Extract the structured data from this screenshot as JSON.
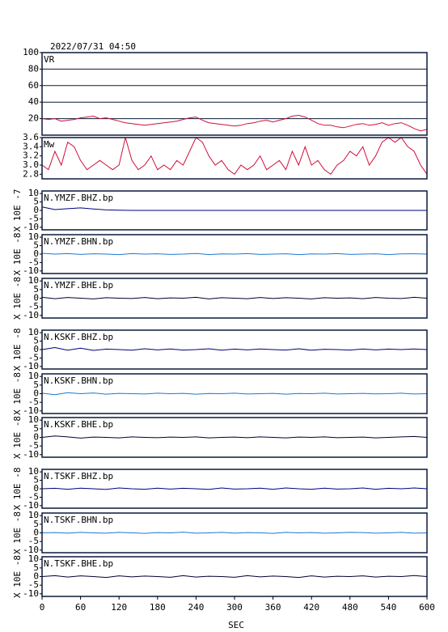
{
  "chart_data": [
    {
      "type": "line",
      "title": "2022/07/31 04:50",
      "label": "VR",
      "color": "#d0103a",
      "grid": true,
      "xlim": [
        0,
        600
      ],
      "ylim": [
        0,
        100
      ],
      "yticks": [
        20,
        40,
        60,
        80,
        100
      ],
      "x": [
        0,
        10,
        20,
        30,
        40,
        50,
        60,
        70,
        80,
        90,
        100,
        110,
        120,
        130,
        140,
        150,
        160,
        170,
        180,
        190,
        200,
        210,
        220,
        230,
        240,
        250,
        260,
        270,
        280,
        290,
        300,
        310,
        320,
        330,
        340,
        350,
        360,
        370,
        380,
        390,
        400,
        410,
        420,
        430,
        440,
        450,
        460,
        470,
        480,
        490,
        500,
        510,
        520,
        530,
        540,
        550,
        560,
        570,
        580,
        590,
        600
      ],
      "values": [
        20,
        19,
        20,
        17,
        18,
        19,
        21,
        22,
        23,
        20,
        21,
        19,
        17,
        15,
        14,
        13,
        12,
        13,
        14,
        15,
        16,
        17,
        19,
        21,
        22,
        18,
        15,
        14,
        13,
        12,
        11,
        12,
        14,
        15,
        17,
        18,
        16,
        18,
        20,
        23,
        24,
        22,
        18,
        14,
        12,
        12,
        10,
        9,
        11,
        13,
        14,
        12,
        13,
        15,
        12,
        14,
        15,
        12,
        8,
        5,
        7
      ]
    },
    {
      "type": "line",
      "label": "Mw",
      "color": "#d0103a",
      "grid": false,
      "xlim": [
        0,
        600
      ],
      "ylim": [
        2.7,
        3.6
      ],
      "yticks": [
        2.8,
        {
          "value": 3,
          "label": "3.0"
        },
        3.2,
        3.4,
        3.6
      ],
      "x": [
        0,
        10,
        20,
        30,
        40,
        50,
        60,
        70,
        80,
        90,
        100,
        110,
        120,
        130,
        140,
        150,
        160,
        170,
        180,
        190,
        200,
        210,
        220,
        230,
        240,
        250,
        260,
        270,
        280,
        290,
        300,
        310,
        320,
        330,
        340,
        350,
        360,
        370,
        380,
        390,
        400,
        410,
        420,
        430,
        440,
        450,
        460,
        470,
        480,
        490,
        500,
        510,
        520,
        530,
        540,
        550,
        560,
        570,
        580,
        590,
        600
      ],
      "values": [
        3.0,
        2.9,
        3.3,
        3.0,
        3.5,
        3.4,
        3.1,
        2.9,
        3.0,
        3.1,
        3.0,
        2.9,
        3.0,
        3.6,
        3.1,
        2.9,
        3.0,
        3.2,
        2.9,
        3.0,
        2.9,
        3.1,
        3.0,
        3.3,
        3.6,
        3.5,
        3.2,
        3.0,
        3.1,
        2.9,
        2.8,
        3.0,
        2.9,
        3.0,
        3.2,
        2.9,
        3.0,
        3.1,
        2.9,
        3.3,
        3.0,
        3.4,
        3.0,
        3.1,
        2.9,
        2.8,
        3.0,
        3.1,
        3.3,
        3.2,
        3.4,
        3.0,
        3.2,
        3.5,
        3.6,
        3.5,
        3.6,
        3.4,
        3.3,
        3.0,
        2.8
      ]
    },
    {
      "type": "line",
      "label": "N.YMZF.BHZ.bp",
      "ylabel": "X 10E -7",
      "color": "#000080",
      "xlim": [
        0,
        600
      ],
      "ylim": [
        -11.5,
        11.5
      ],
      "yticks": [
        -10,
        -5,
        0,
        5,
        10
      ],
      "x": [
        0,
        20,
        40,
        60,
        80,
        100,
        120,
        140,
        160,
        180,
        200,
        220,
        240,
        260,
        280,
        300,
        320,
        340,
        360,
        380,
        400,
        420,
        440,
        460,
        480,
        500,
        520,
        540,
        560,
        580,
        600
      ],
      "values": [
        2,
        0.5,
        1,
        1.5,
        0.8,
        0.3,
        0.1,
        0,
        0,
        0,
        0,
        0,
        0,
        0,
        0,
        0,
        0,
        0,
        0,
        0,
        0,
        0,
        0,
        0,
        0,
        0,
        0,
        0,
        0,
        0,
        0
      ]
    },
    {
      "type": "line",
      "label": "N.YMZF.BHN.bp",
      "ylabel": "X 10E -8",
      "color": "#1e78d0",
      "xlim": [
        0,
        600
      ],
      "ylim": [
        -11.5,
        11.5
      ],
      "yticks": [
        -10,
        -5,
        0,
        5,
        10
      ],
      "x": [
        0,
        20,
        40,
        60,
        80,
        100,
        120,
        140,
        160,
        180,
        200,
        220,
        240,
        260,
        280,
        300,
        320,
        340,
        360,
        380,
        400,
        420,
        440,
        460,
        480,
        500,
        520,
        540,
        560,
        580,
        600
      ],
      "values": [
        0.5,
        0,
        0.3,
        -0.2,
        0.2,
        0,
        -0.3,
        0.3,
        0,
        0.2,
        -0.2,
        0,
        0.4,
        -0.3,
        0.1,
        0,
        0.3,
        -0.2,
        0,
        0.2,
        -0.3,
        0.1,
        0,
        0.3,
        -0.2,
        0,
        0.2,
        -0.3,
        0.1,
        0.2,
        0
      ]
    },
    {
      "type": "line",
      "label": "N.YMZF.BHE.bp",
      "ylabel": "X 10E -8",
      "color": "#000030",
      "xlim": [
        0,
        600
      ],
      "ylim": [
        -11.5,
        11.5
      ],
      "yticks": [
        -10,
        -5,
        0,
        5,
        10
      ],
      "x": [
        0,
        20,
        40,
        60,
        80,
        100,
        120,
        140,
        160,
        180,
        200,
        220,
        240,
        260,
        280,
        300,
        320,
        340,
        360,
        380,
        400,
        420,
        440,
        460,
        480,
        500,
        520,
        540,
        560,
        580,
        600
      ],
      "values": [
        0.5,
        -0.3,
        0.4,
        0,
        -0.4,
        0.3,
        0,
        -0.2,
        0.4,
        -0.3,
        0.2,
        0,
        0.5,
        -0.4,
        0.3,
        0,
        -0.3,
        0.4,
        -0.2,
        0.3,
        0,
        -0.4,
        0.3,
        0,
        0.2,
        -0.3,
        0.4,
        0,
        -0.2,
        0.5,
        0
      ]
    },
    {
      "type": "line",
      "label": "N.KSKF.BHZ.bp",
      "ylabel": "X 10E -8",
      "color": "#000080",
      "xlim": [
        0,
        600
      ],
      "ylim": [
        -11.5,
        11.5
      ],
      "yticks": [
        -10,
        -5,
        0,
        5,
        10
      ],
      "x": [
        0,
        20,
        40,
        60,
        80,
        100,
        120,
        140,
        160,
        180,
        200,
        220,
        240,
        260,
        280,
        300,
        320,
        340,
        360,
        380,
        400,
        420,
        440,
        460,
        480,
        500,
        520,
        540,
        560,
        580,
        600
      ],
      "values": [
        0,
        1.2,
        -0.4,
        0.8,
        -0.5,
        0.3,
        0,
        -0.4,
        0.5,
        -0.2,
        0.4,
        -0.3,
        0,
        0.5,
        -0.4,
        0.3,
        -0.2,
        0.4,
        0,
        -0.3,
        0.5,
        -0.4,
        0.2,
        0,
        -0.3,
        0.4,
        -0.2,
        0.3,
        0,
        0.4,
        0
      ]
    },
    {
      "type": "line",
      "label": "N.KSKF.BHN.bp",
      "ylabel": "X 10E -8",
      "color": "#1e78d0",
      "xlim": [
        0,
        600
      ],
      "ylim": [
        -11.5,
        11.5
      ],
      "yticks": [
        -10,
        -5,
        0,
        5,
        10
      ],
      "x": [
        0,
        20,
        40,
        60,
        80,
        100,
        120,
        140,
        160,
        180,
        200,
        220,
        240,
        260,
        280,
        300,
        320,
        340,
        360,
        380,
        400,
        420,
        440,
        460,
        480,
        500,
        520,
        540,
        560,
        580,
        600
      ],
      "values": [
        0.3,
        -0.6,
        0.6,
        0,
        0.4,
        -0.3,
        0.2,
        0,
        -0.2,
        0.3,
        0,
        0.2,
        -0.3,
        0.1,
        0,
        0.3,
        -0.2,
        0,
        0.2,
        -0.3,
        0.1,
        0,
        0.3,
        -0.2,
        0,
        0.2,
        -0.1,
        0,
        0.3,
        -0.2,
        0
      ]
    },
    {
      "type": "line",
      "label": "N.KSKF.BHE.bp",
      "ylabel": "X 10E -8",
      "color": "#000030",
      "xlim": [
        0,
        600
      ],
      "ylim": [
        -11.5,
        11.5
      ],
      "yticks": [
        -10,
        -5,
        0,
        5,
        10
      ],
      "x": [
        0,
        20,
        40,
        60,
        80,
        100,
        120,
        140,
        160,
        180,
        200,
        220,
        240,
        260,
        280,
        300,
        320,
        340,
        360,
        380,
        400,
        420,
        440,
        460,
        480,
        500,
        520,
        540,
        560,
        580,
        600
      ],
      "values": [
        0,
        0.8,
        0.3,
        -0.4,
        0.2,
        0,
        -0.3,
        0.3,
        0,
        -0.2,
        0.2,
        0,
        0.3,
        -0.3,
        0,
        0.2,
        -0.2,
        0.3,
        0,
        -0.3,
        0.2,
        0,
        0.3,
        -0.2,
        0,
        0.2,
        -0.3,
        0,
        0.3,
        0.5,
        0
      ]
    },
    {
      "type": "line",
      "label": "N.TSKF.BHZ.bp",
      "ylabel": "X 10E -8",
      "color": "#000080",
      "xlim": [
        0,
        600
      ],
      "ylim": [
        -11.5,
        11.5
      ],
      "yticks": [
        -10,
        -5,
        0,
        5,
        10
      ],
      "x": [
        0,
        20,
        40,
        60,
        80,
        100,
        120,
        140,
        160,
        180,
        200,
        220,
        240,
        260,
        280,
        300,
        320,
        340,
        360,
        380,
        400,
        420,
        440,
        460,
        480,
        500,
        520,
        540,
        560,
        580,
        600
      ],
      "values": [
        0,
        0.3,
        -0.3,
        0.4,
        0,
        -0.4,
        0.5,
        0,
        -0.3,
        0.4,
        -0.2,
        0.3,
        0,
        -0.4,
        0.5,
        -0.2,
        0,
        0.4,
        -0.3,
        0.5,
        0,
        -0.3,
        0.4,
        -0.2,
        0,
        0.5,
        -0.3,
        0.3,
        0,
        0.5,
        0
      ]
    },
    {
      "type": "line",
      "label": "N.TSKF.BHN.bp",
      "ylabel": "X 10E -8",
      "color": "#1e78d0",
      "xlim": [
        0,
        600
      ],
      "ylim": [
        -11.5,
        11.5
      ],
      "yticks": [
        -10,
        -5,
        0,
        5,
        10
      ],
      "x": [
        0,
        20,
        40,
        60,
        80,
        100,
        120,
        140,
        160,
        180,
        200,
        220,
        240,
        260,
        280,
        300,
        320,
        340,
        360,
        380,
        400,
        420,
        440,
        460,
        480,
        500,
        520,
        540,
        560,
        580,
        600
      ],
      "values": [
        0,
        0.2,
        -0.2,
        0.3,
        0,
        -0.2,
        0.3,
        0,
        -0.3,
        0.2,
        0,
        0.4,
        -0.2,
        0,
        0.3,
        -0.2,
        0.2,
        0,
        -0.3,
        0.3,
        0,
        0.2,
        -0.2,
        0,
        0.3,
        0.2,
        -0.2,
        0,
        0.3,
        -0.2,
        0
      ]
    },
    {
      "type": "line",
      "label": "N.TSKF.BHE.bp",
      "ylabel": "X 10E -8",
      "color": "#000030",
      "xlim": [
        0,
        600
      ],
      "ylim": [
        -11.5,
        11.5
      ],
      "yticks": [
        -10,
        -5,
        0,
        5,
        10
      ],
      "x": [
        0,
        20,
        40,
        60,
        80,
        100,
        120,
        140,
        160,
        180,
        200,
        220,
        240,
        260,
        280,
        300,
        320,
        340,
        360,
        380,
        400,
        420,
        440,
        460,
        480,
        500,
        520,
        540,
        560,
        580,
        600
      ],
      "values": [
        0,
        0.5,
        -0.3,
        0.4,
        0,
        -0.5,
        0.4,
        -0.2,
        0.3,
        0,
        -0.4,
        0.5,
        -0.3,
        0.2,
        0,
        -0.4,
        0.5,
        -0.2,
        0.3,
        0,
        -0.5,
        0.4,
        -0.3,
        0.2,
        0,
        0.4,
        -0.3,
        0.2,
        0,
        0.6,
        0
      ],
      "xticks": [
        0,
        60,
        120,
        180,
        240,
        300,
        360,
        420,
        480,
        540,
        600
      ],
      "xlabel": "SEC"
    }
  ]
}
